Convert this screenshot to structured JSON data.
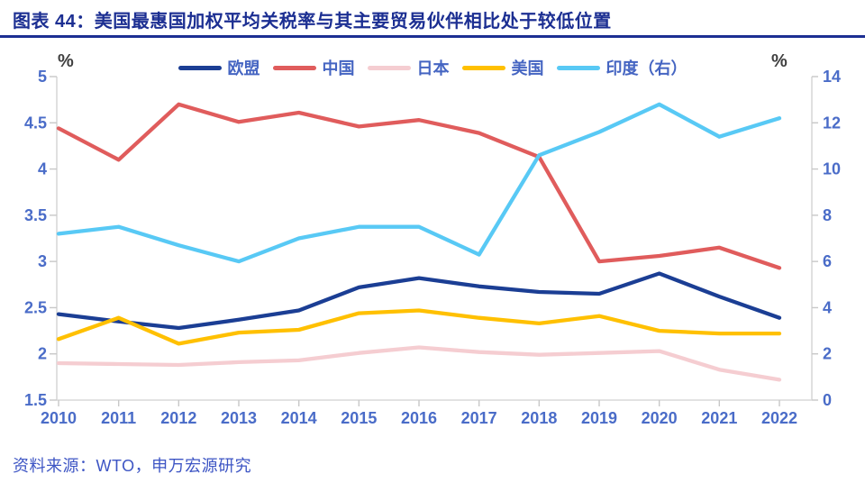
{
  "header": {
    "title": "图表 44：美国最惠国加权平均关税率与其主要贸易伙伴相比处于较低位置"
  },
  "chart_data": {
    "type": "line",
    "title": "美国最惠国加权平均关税率与其主要贸易伙伴相比",
    "categories": [
      "2010",
      "2011",
      "2012",
      "2013",
      "2014",
      "2015",
      "2016",
      "2017",
      "2018",
      "2019",
      "2020",
      "2021",
      "2022"
    ],
    "series": [
      {
        "name": "欧盟",
        "axis": "left",
        "color": "#1b3e94",
        "values": [
          2.43,
          2.35,
          2.28,
          2.37,
          2.47,
          2.72,
          2.82,
          2.73,
          2.67,
          2.65,
          2.87,
          2.62,
          2.39
        ]
      },
      {
        "name": "中国",
        "axis": "left",
        "color": "#e05c5c",
        "values": [
          4.44,
          4.1,
          4.7,
          4.51,
          4.61,
          4.46,
          4.53,
          4.39,
          4.13,
          3.0,
          3.06,
          3.15,
          2.93
        ]
      },
      {
        "name": "日本",
        "axis": "left",
        "color": "#f5cdd1",
        "values": [
          1.9,
          1.89,
          1.88,
          1.91,
          1.93,
          2.01,
          2.07,
          2.02,
          1.99,
          2.01,
          2.03,
          1.83,
          1.72
        ]
      },
      {
        "name": "美国",
        "axis": "left",
        "color": "#ffc000",
        "values": [
          2.16,
          2.39,
          2.11,
          2.23,
          2.26,
          2.44,
          2.47,
          2.39,
          2.33,
          2.41,
          2.25,
          2.22,
          2.22
        ]
      },
      {
        "name": "印度（右）",
        "axis": "right",
        "color": "#58c9f5",
        "values": [
          7.2,
          7.5,
          6.7,
          6.0,
          7.0,
          7.5,
          7.5,
          6.3,
          10.6,
          11.6,
          12.8,
          11.4,
          12.2
        ]
      }
    ],
    "left_axis": {
      "label": "%",
      "min": 1.5,
      "max": 5,
      "tick_labels": [
        "5",
        "4.5",
        "4",
        "3.5",
        "3",
        "2.5",
        "2",
        "1.5"
      ]
    },
    "right_axis": {
      "label": "%",
      "min": 0,
      "max": 14,
      "tick_labels": [
        "14",
        "12",
        "10",
        "8",
        "6",
        "4",
        "2",
        "0"
      ]
    },
    "legend_position": "top",
    "grid": false
  },
  "source": {
    "text": "资料来源：WTO，申万宏源研究"
  },
  "colors": {
    "title": "#1c2f92",
    "axis_text": "#4a6cc8",
    "legend_text": "#4565c2",
    "axis_line": "#d9d9d9",
    "tick_mark": "#c8c8c8",
    "percent_label": "#3f3f3f",
    "source_text": "#3d55c4"
  }
}
